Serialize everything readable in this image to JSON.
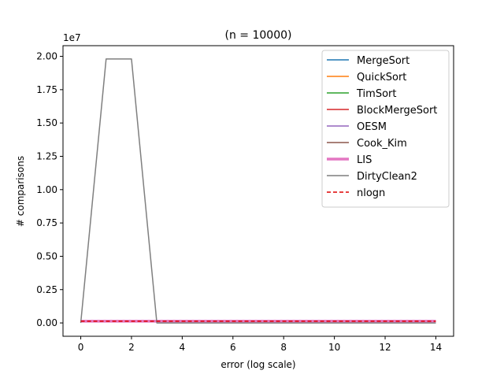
{
  "chart_data": {
    "type": "line",
    "title": "(n = 10000)",
    "xlabel": "error (log scale)",
    "ylabel": "# comparisons",
    "y_offset_label": "1e7",
    "y_scale": 10000000,
    "xlim": [
      -0.7,
      14.7
    ],
    "ylim": [
      -0.1,
      2.08
    ],
    "x_ticks": [
      0,
      2,
      4,
      6,
      8,
      10,
      12,
      14
    ],
    "x_tick_labels": [
      "0",
      "2",
      "4",
      "6",
      "8",
      "10",
      "12",
      "14"
    ],
    "y_ticks": [
      0,
      0.25,
      0.5,
      0.75,
      1.0,
      1.25,
      1.5,
      1.75,
      2.0
    ],
    "y_tick_labels": [
      "0.00",
      "0.25",
      "0.50",
      "0.75",
      "1.00",
      "1.25",
      "1.50",
      "1.75",
      "2.00"
    ],
    "grid": false,
    "legend_position": "top-right",
    "series": [
      {
        "name": "MergeSort",
        "color": "#1f77b4",
        "width": 1.5,
        "dash": "",
        "x": [
          0,
          1,
          2,
          3,
          4,
          5,
          6,
          7,
          8,
          9,
          10,
          11,
          12,
          13,
          14
        ],
        "y": [
          0.012,
          0.012,
          0.012,
          0.012,
          0.012,
          0.012,
          0.012,
          0.012,
          0.012,
          0.012,
          0.012,
          0.012,
          0.012,
          0.012,
          0.012
        ]
      },
      {
        "name": "QuickSort",
        "color": "#ff7f0e",
        "width": 1.5,
        "dash": "",
        "x": [
          0,
          1,
          2,
          3,
          4,
          5,
          6,
          7,
          8,
          9,
          10,
          11,
          12,
          13,
          14
        ],
        "y": [
          0.016,
          0.016,
          0.016,
          0.016,
          0.016,
          0.016,
          0.016,
          0.016,
          0.016,
          0.016,
          0.016,
          0.016,
          0.016,
          0.016,
          0.016
        ]
      },
      {
        "name": "TimSort",
        "color": "#2ca02c",
        "width": 1.5,
        "dash": "",
        "x": [
          0,
          1,
          2,
          3,
          4,
          5,
          6,
          7,
          8,
          9,
          10,
          11,
          12,
          13,
          14
        ],
        "y": [
          0.011,
          0.011,
          0.011,
          0.011,
          0.011,
          0.011,
          0.011,
          0.011,
          0.011,
          0.011,
          0.011,
          0.011,
          0.011,
          0.011,
          0.011
        ]
      },
      {
        "name": "BlockMergeSort",
        "color": "#d62728",
        "width": 1.5,
        "dash": "",
        "x": [
          0,
          1,
          2,
          3,
          4,
          5,
          6,
          7,
          8,
          9,
          10,
          11,
          12,
          13,
          14
        ],
        "y": [
          0.014,
          0.014,
          0.014,
          0.014,
          0.014,
          0.014,
          0.014,
          0.014,
          0.014,
          0.014,
          0.014,
          0.014,
          0.014,
          0.014,
          0.014
        ]
      },
      {
        "name": "OESM",
        "color": "#9467bd",
        "width": 1.5,
        "dash": "",
        "x": [
          0,
          1,
          2,
          3,
          4,
          5,
          6,
          7,
          8,
          9,
          10,
          11,
          12,
          13,
          14
        ],
        "y": [
          0.013,
          0.013,
          0.013,
          0.013,
          0.013,
          0.013,
          0.013,
          0.013,
          0.013,
          0.013,
          0.013,
          0.013,
          0.013,
          0.013,
          0.013
        ]
      },
      {
        "name": "Cook_Kim",
        "color": "#8c564b",
        "width": 1.5,
        "dash": "",
        "x": [
          0,
          1,
          2,
          3,
          4,
          5,
          6,
          7,
          8,
          9,
          10,
          11,
          12,
          13,
          14
        ],
        "y": [
          0.012,
          0.012,
          0.012,
          0.012,
          0.012,
          0.012,
          0.012,
          0.012,
          0.012,
          0.012,
          0.012,
          0.012,
          0.012,
          0.012,
          0.012
        ]
      },
      {
        "name": "LIS",
        "color": "#e377c2",
        "width": 3.5,
        "dash": "",
        "x": [
          0,
          1,
          2,
          3,
          4,
          5,
          6,
          7,
          8,
          9,
          10,
          11,
          12,
          13,
          14
        ],
        "y": [
          0.013,
          0.013,
          0.013,
          0.013,
          0.013,
          0.013,
          0.013,
          0.013,
          0.013,
          0.013,
          0.013,
          0.013,
          0.013,
          0.013,
          0.013
        ]
      },
      {
        "name": "DirtyClean2",
        "color": "#7f7f7f",
        "width": 1.5,
        "dash": "",
        "x": [
          0,
          1,
          2,
          3,
          4,
          5,
          6,
          7,
          8,
          9,
          10,
          11,
          12,
          13,
          14
        ],
        "y": [
          0.0,
          1.98,
          1.98,
          0.0,
          0.0,
          0.0,
          0.0,
          0.0,
          0.0,
          0.0,
          0.0,
          0.0,
          0.0,
          0.0,
          0.0
        ]
      },
      {
        "name": "nlogn",
        "color": "#dd0000",
        "width": 1.5,
        "dash": "5,3",
        "x": [
          0,
          1,
          2,
          3,
          4,
          5,
          6,
          7,
          8,
          9,
          10,
          11,
          12,
          13,
          14
        ],
        "y": [
          0.013,
          0.013,
          0.013,
          0.013,
          0.013,
          0.013,
          0.013,
          0.013,
          0.013,
          0.013,
          0.013,
          0.013,
          0.013,
          0.013,
          0.013
        ]
      }
    ]
  }
}
